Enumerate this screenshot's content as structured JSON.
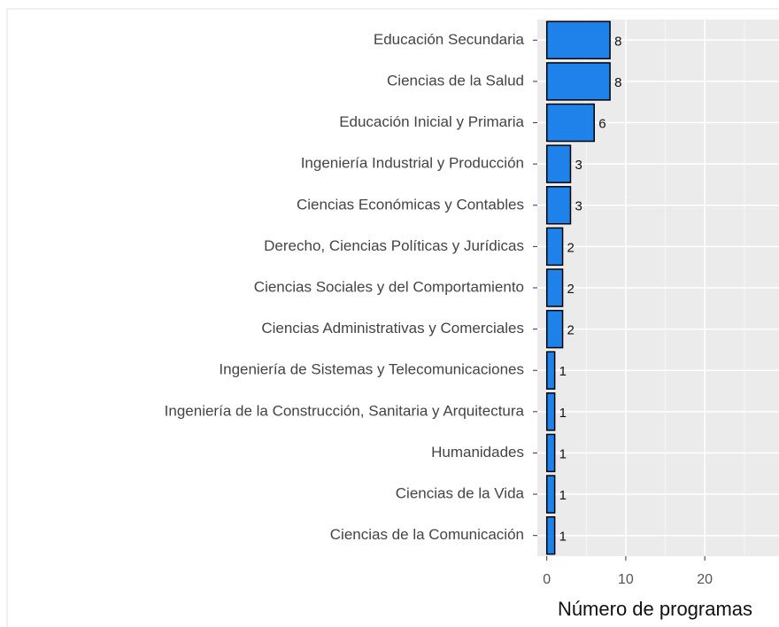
{
  "chart_data": {
    "type": "barh",
    "categories": [
      "Educación Secundaria",
      "Ciencias de la Salud",
      "Educación Inicial y Primaria",
      "Ingeniería Industrial y Producción",
      "Ciencias Económicas y Contables",
      "Derecho, Ciencias Políticas y Jurídicas",
      "Ciencias Sociales y del Comportamiento",
      "Ciencias Administrativas y Comerciales",
      "Ingeniería de Sistemas y Telecomunicaciones",
      "Ingeniería de la Construcción, Sanitaria y Arquitectura",
      "Humanidades",
      "Ciencias de la Vida",
      "Ciencias de la Comunicación"
    ],
    "values": [
      8,
      8,
      6,
      3,
      3,
      2,
      2,
      2,
      1,
      1,
      1,
      1,
      1
    ],
    "color": "#1f82eb",
    "xlabel": "Número de programas",
    "xlim": [
      -1.2,
      29.4
    ],
    "xticks": [
      0,
      10,
      20
    ],
    "xminor": [
      5,
      15,
      25
    ],
    "grid": true
  }
}
